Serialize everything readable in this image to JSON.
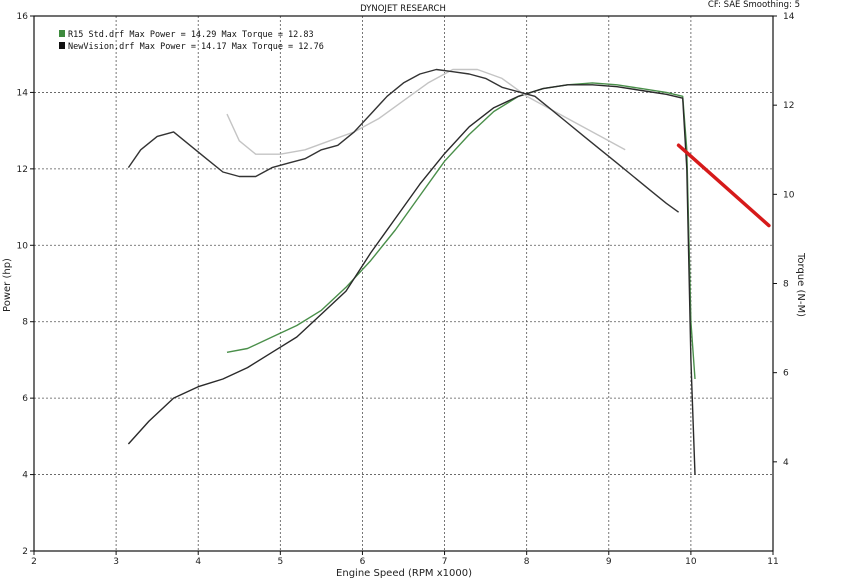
{
  "header": {
    "title": "DYNOJET RESEARCH",
    "settings": "CF: SAE   Smoothing: 5"
  },
  "legend": [
    {
      "text": "R15 Std.drf Max Power = 14.29     Max Torque = 12.83",
      "color": "#3d8a3d"
    },
    {
      "text": "NewVision.drf Max Power = 14.17     Max Torque = 12.76",
      "color": "#111111"
    }
  ],
  "chart_data": {
    "type": "line",
    "title": "DYNOJET RESEARCH",
    "xlabel": "Engine Speed (RPM x1000)",
    "ylabel": "Power (hp)",
    "y2label": "Torque (N-M)",
    "xlim": [
      2,
      11
    ],
    "ylim": [
      2,
      16
    ],
    "y2lim": [
      2,
      14
    ],
    "x_ticks": [
      2,
      3,
      4,
      5,
      6,
      7,
      8,
      9,
      10,
      11
    ],
    "y_ticks": [
      2,
      4,
      6,
      8,
      10,
      12,
      14,
      16
    ],
    "y2_ticks": [
      4,
      6,
      8,
      10,
      12,
      14
    ],
    "grid": true,
    "legend_position": "top-left",
    "series": [
      {
        "name": "R15 Std.drf",
        "quantity": "Power",
        "axis": "left",
        "color": "#4a8f4a",
        "x": [
          4.35,
          4.6,
          4.9,
          5.2,
          5.5,
          5.8,
          6.1,
          6.4,
          6.7,
          7.0,
          7.3,
          7.6,
          7.9,
          8.2,
          8.5,
          8.8,
          9.1,
          9.4,
          9.7,
          9.9,
          9.95,
          10.0,
          10.05
        ],
        "y": [
          7.2,
          7.3,
          7.6,
          7.9,
          8.3,
          8.9,
          9.6,
          10.4,
          11.3,
          12.2,
          12.9,
          13.5,
          13.9,
          14.1,
          14.2,
          14.25,
          14.2,
          14.1,
          14.0,
          13.9,
          12.5,
          8.0,
          6.5
        ]
      },
      {
        "name": "NewVision.drf",
        "quantity": "Power",
        "axis": "left",
        "color": "#2a2a2a",
        "x": [
          3.15,
          3.4,
          3.7,
          4.0,
          4.3,
          4.6,
          4.9,
          5.2,
          5.5,
          5.8,
          6.1,
          6.4,
          6.7,
          7.0,
          7.3,
          7.6,
          7.9,
          8.2,
          8.5,
          8.8,
          9.1,
          9.4,
          9.7,
          9.9,
          9.95,
          10.0,
          10.05
        ],
        "y": [
          4.8,
          5.4,
          6.0,
          6.3,
          6.5,
          6.8,
          7.2,
          7.6,
          8.2,
          8.8,
          9.8,
          10.7,
          11.6,
          12.4,
          13.1,
          13.6,
          13.9,
          14.1,
          14.2,
          14.2,
          14.15,
          14.05,
          13.95,
          13.85,
          12.0,
          7.0,
          4.0
        ]
      },
      {
        "name": "R15 Std.drf",
        "quantity": "Torque",
        "axis": "right",
        "color": "#c4c4c4",
        "x": [
          4.35,
          4.5,
          4.7,
          5.0,
          5.3,
          5.6,
          5.9,
          6.2,
          6.5,
          6.8,
          7.1,
          7.4,
          7.7,
          8.0,
          8.3,
          8.6,
          8.9,
          9.2
        ],
        "y": [
          11.8,
          11.2,
          10.9,
          10.9,
          11.0,
          11.2,
          11.4,
          11.7,
          12.1,
          12.5,
          12.8,
          12.8,
          12.6,
          12.2,
          11.9,
          11.6,
          11.3,
          11.0
        ]
      },
      {
        "name": "NewVision.drf",
        "quantity": "Torque",
        "axis": "right",
        "color": "#333333",
        "x": [
          3.15,
          3.3,
          3.5,
          3.7,
          3.9,
          4.1,
          4.3,
          4.5,
          4.7,
          4.9,
          5.1,
          5.3,
          5.5,
          5.7,
          5.9,
          6.1,
          6.3,
          6.5,
          6.7,
          6.9,
          7.1,
          7.3,
          7.5,
          7.7,
          7.9,
          8.1,
          8.3,
          8.5,
          8.7,
          8.9,
          9.1,
          9.3,
          9.5,
          9.7,
          9.85
        ],
        "y": [
          10.6,
          11.0,
          11.3,
          11.4,
          11.1,
          10.8,
          10.5,
          10.4,
          10.4,
          10.6,
          10.7,
          10.8,
          11.0,
          11.1,
          11.4,
          11.8,
          12.2,
          12.5,
          12.7,
          12.8,
          12.75,
          12.7,
          12.6,
          12.4,
          12.3,
          12.2,
          11.9,
          11.6,
          11.3,
          11.0,
          10.7,
          10.4,
          10.1,
          9.8,
          9.6
        ]
      }
    ],
    "annotations": [
      {
        "type": "line",
        "color": "#d61a1a",
        "from": {
          "x": 9.85,
          "y": 11.1
        },
        "to": {
          "x": 10.95,
          "y": 9.3
        }
      }
    ]
  }
}
